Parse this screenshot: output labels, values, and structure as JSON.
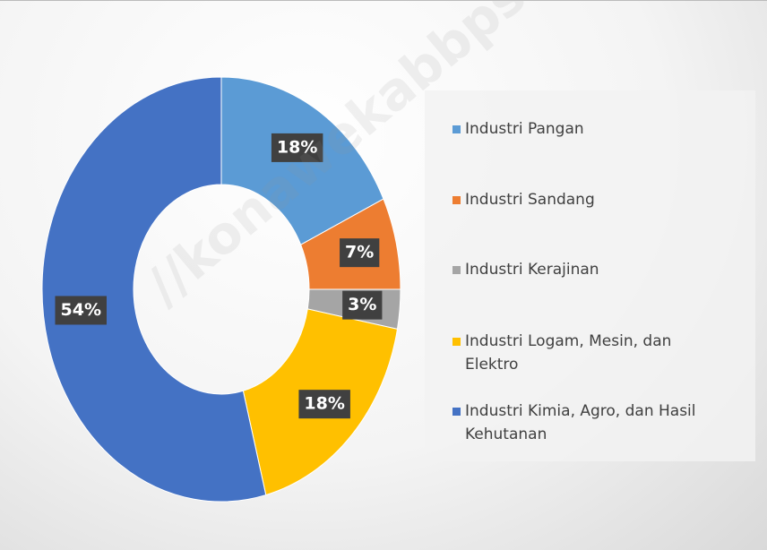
{
  "chart_data": {
    "type": "donut",
    "categories": [
      "Industri Pangan",
      "Industri Sandang",
      "Industri Kerajinan",
      "Industri Logam, Mesin, dan Elektro",
      "Industri Kimia, Agro, dan Hasil Kehutanan"
    ],
    "values": [
      18,
      7,
      3,
      18,
      54
    ],
    "value_labels": [
      "18%",
      "7%",
      "3%",
      "18%",
      "54%"
    ],
    "colors": [
      "#5b9bd5",
      "#ed7d31",
      "#a5a5a5",
      "#ffc000",
      "#4472c4"
    ],
    "legend": "right"
  },
  "watermark": "//konawekabbps.go.id"
}
